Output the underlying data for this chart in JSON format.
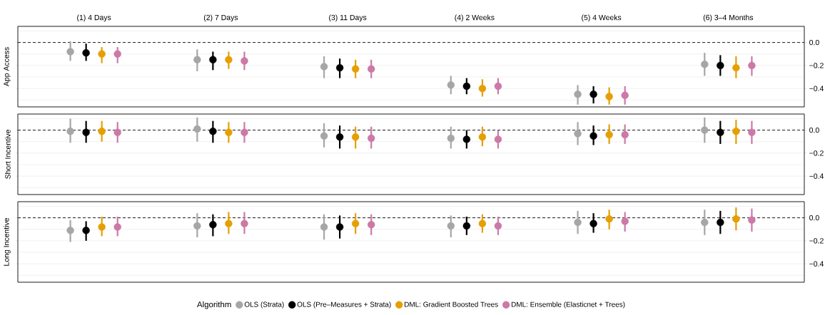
{
  "chart_data": [
    {
      "type": "scatter",
      "ylabel": "App Access",
      "categories": [
        "(1) 4 Days",
        "(2) 7 Days",
        "(3) 11 Days",
        "(4) 2 Weeks",
        "(5) 4 Weeks",
        "(6) 3–4 Months"
      ],
      "ylim": [
        -0.56,
        0.14
      ],
      "yticks": [
        {
          "value": 0.1,
          "label": null
        },
        {
          "value": 0,
          "label": "0.0"
        },
        {
          "value": -0.1,
          "label": null
        },
        {
          "value": -0.2,
          "label": "−0.2"
        },
        {
          "value": -0.3,
          "label": null
        },
        {
          "value": -0.4,
          "label": "−0.4"
        },
        {
          "value": -0.5,
          "label": null
        }
      ],
      "grid": "y",
      "marker": "circle",
      "ref_lines": [
        {
          "axis": "y",
          "value": 0,
          "line_style": "dashed",
          "color": "#000000"
        }
      ],
      "series": [
        {
          "color": "#a6a6a6",
          "values": [
            -0.08,
            -0.15,
            -0.21,
            -0.37,
            -0.45,
            -0.19
          ],
          "errors": [
            [
              -0.16,
              0.01
            ],
            [
              -0.25,
              -0.06
            ],
            [
              -0.31,
              -0.12
            ],
            [
              -0.45,
              -0.29
            ],
            [
              -0.54,
              -0.37
            ],
            [
              -0.29,
              -0.09
            ]
          ]
        },
        {
          "color": "#000000",
          "values": [
            -0.09,
            -0.15,
            -0.22,
            -0.38,
            -0.45,
            -0.2
          ],
          "errors": [
            [
              -0.16,
              -0.01
            ],
            [
              -0.24,
              -0.08
            ],
            [
              -0.31,
              -0.14
            ],
            [
              -0.45,
              -0.31
            ],
            [
              -0.53,
              -0.38
            ],
            [
              -0.29,
              -0.11
            ]
          ]
        },
        {
          "color": "#e69f00",
          "values": [
            -0.1,
            -0.15,
            -0.23,
            -0.4,
            -0.47,
            -0.22
          ],
          "errors": [
            [
              -0.18,
              -0.04
            ],
            [
              -0.23,
              -0.08
            ],
            [
              -0.31,
              -0.15
            ],
            [
              -0.47,
              -0.32
            ],
            [
              -0.54,
              -0.39
            ],
            [
              -0.31,
              -0.12
            ]
          ]
        },
        {
          "color": "#cc79a7",
          "values": [
            -0.1,
            -0.16,
            -0.23,
            -0.38,
            -0.46,
            -0.2
          ],
          "errors": [
            [
              -0.18,
              -0.04
            ],
            [
              -0.24,
              -0.08
            ],
            [
              -0.31,
              -0.15
            ],
            [
              -0.45,
              -0.31
            ],
            [
              -0.54,
              -0.38
            ],
            [
              -0.29,
              -0.12
            ]
          ]
        }
      ]
    },
    {
      "type": "scatter",
      "ylabel": "Short Incentive",
      "categories": [
        null,
        null,
        null,
        null,
        null,
        null
      ],
      "tick_labels": "y",
      "ylim": [
        -0.56,
        0.14
      ],
      "yticks": [
        {
          "value": 0.1,
          "label": null
        },
        {
          "value": 0,
          "label": "0.0"
        },
        {
          "value": -0.1,
          "label": null
        },
        {
          "value": -0.2,
          "label": "−0.2"
        },
        {
          "value": -0.3,
          "label": null
        },
        {
          "value": -0.4,
          "label": "−0.4"
        },
        {
          "value": -0.5,
          "label": null
        }
      ],
      "grid": "y",
      "marker": "circle",
      "ref_lines": [
        {
          "axis": "y",
          "value": 0,
          "line_style": "dashed",
          "color": "#000000"
        }
      ],
      "series": [
        {
          "color": "#a6a6a6",
          "values": [
            -0.01,
            0.01,
            -0.05,
            -0.07,
            -0.03,
            0.0
          ],
          "errors": [
            [
              -0.11,
              0.1
            ],
            [
              -0.1,
              0.11
            ],
            [
              -0.15,
              0.06
            ],
            [
              -0.16,
              0.03
            ],
            [
              -0.13,
              0.07
            ],
            [
              -0.11,
              0.11
            ]
          ]
        },
        {
          "color": "#000000",
          "values": [
            -0.02,
            -0.01,
            -0.06,
            -0.08,
            -0.05,
            -0.02
          ],
          "errors": [
            [
              -0.11,
              0.08
            ],
            [
              -0.11,
              0.08
            ],
            [
              -0.16,
              0.04
            ],
            [
              -0.16,
              0.0
            ],
            [
              -0.13,
              0.04
            ],
            [
              -0.12,
              0.08
            ]
          ]
        },
        {
          "color": "#e69f00",
          "values": [
            -0.01,
            -0.02,
            -0.06,
            -0.06,
            -0.04,
            -0.01
          ],
          "errors": [
            [
              -0.1,
              0.08
            ],
            [
              -0.11,
              0.07
            ],
            [
              -0.16,
              0.03
            ],
            [
              -0.14,
              0.03
            ],
            [
              -0.12,
              0.05
            ],
            [
              -0.12,
              0.09
            ]
          ]
        },
        {
          "color": "#cc79a7",
          "values": [
            -0.02,
            -0.02,
            -0.07,
            -0.08,
            -0.04,
            -0.02
          ],
          "errors": [
            [
              -0.11,
              0.07
            ],
            [
              -0.11,
              0.07
            ],
            [
              -0.16,
              0.03
            ],
            [
              -0.16,
              0.0
            ],
            [
              -0.12,
              0.05
            ],
            [
              -0.12,
              0.08
            ]
          ]
        }
      ]
    },
    {
      "type": "scatter",
      "ylabel": "Long Incentive",
      "categories": [
        null,
        null,
        null,
        null,
        null,
        null
      ],
      "tick_labels": "y",
      "ylim": [
        -0.56,
        0.14
      ],
      "yticks": [
        {
          "value": 0.1,
          "label": null
        },
        {
          "value": 0,
          "label": "0.0"
        },
        {
          "value": -0.1,
          "label": null
        },
        {
          "value": -0.2,
          "label": "−0.2"
        },
        {
          "value": -0.3,
          "label": null
        },
        {
          "value": -0.4,
          "label": "−0.4"
        },
        {
          "value": -0.5,
          "label": null
        }
      ],
      "grid": "y",
      "marker": "circle",
      "ref_lines": [
        {
          "axis": "y",
          "value": 0,
          "line_style": "dashed",
          "color": "#000000"
        }
      ],
      "legend": "bottom",
      "legend_title": "Algorithm",
      "series": [
        {
          "name": "OLS (Strata)",
          "color": "#a6a6a6",
          "values": [
            -0.11,
            -0.07,
            -0.08,
            -0.07,
            -0.04,
            -0.04
          ],
          "errors": [
            [
              -0.21,
              -0.02
            ],
            [
              -0.17,
              0.04
            ],
            [
              -0.19,
              0.03
            ],
            [
              -0.17,
              0.02
            ],
            [
              -0.14,
              0.06
            ],
            [
              -0.15,
              0.07
            ]
          ]
        },
        {
          "name": "OLS (Pre–Measures + Strata)",
          "color": "#000000",
          "values": [
            -0.11,
            -0.06,
            -0.08,
            -0.07,
            -0.05,
            -0.04
          ],
          "errors": [
            [
              -0.2,
              -0.03
            ],
            [
              -0.16,
              0.03
            ],
            [
              -0.18,
              0.02
            ],
            [
              -0.15,
              0.01
            ],
            [
              -0.13,
              0.04
            ],
            [
              -0.14,
              0.06
            ]
          ]
        },
        {
          "name": "DML: Gradient Boosted Trees",
          "color": "#e69f00",
          "values": [
            -0.08,
            -0.05,
            -0.05,
            -0.05,
            -0.01,
            -0.01
          ],
          "errors": [
            [
              -0.16,
              0.01
            ],
            [
              -0.14,
              0.05
            ],
            [
              -0.14,
              0.04
            ],
            [
              -0.13,
              0.03
            ],
            [
              -0.1,
              0.07
            ],
            [
              -0.11,
              0.09
            ]
          ]
        },
        {
          "name": "DML: Ensemble (Elasticnet + Trees)",
          "color": "#cc79a7",
          "values": [
            -0.08,
            -0.05,
            -0.06,
            -0.07,
            -0.03,
            -0.02
          ],
          "errors": [
            [
              -0.16,
              0.01
            ],
            [
              -0.14,
              0.05
            ],
            [
              -0.15,
              0.03
            ],
            [
              -0.15,
              0.01
            ],
            [
              -0.12,
              0.05
            ],
            [
              -0.12,
              0.08
            ]
          ]
        }
      ]
    }
  ]
}
